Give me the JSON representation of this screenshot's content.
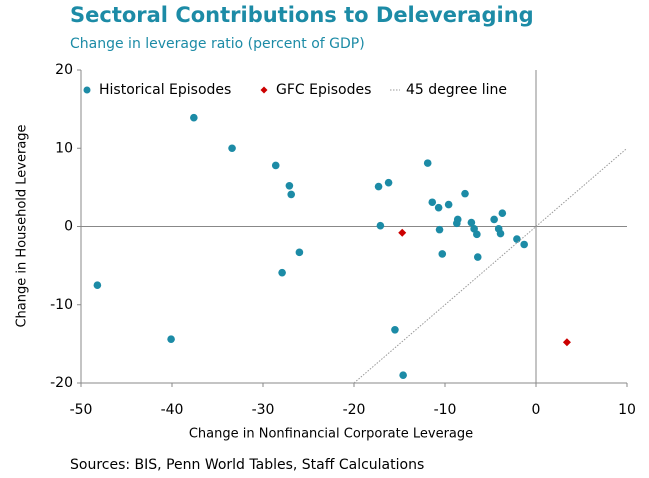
{
  "chart_data": {
    "type": "scatter",
    "title": "Sectoral Contributions to Deleveraging",
    "subtitle": "Change in leverage ratio (percent of GDP)",
    "x_label": "Change in Nonfinancial Corporate Leverage",
    "y_label": "Change in Household Leverage",
    "source": "Sources: BIS, Penn World Tables, Staff Calculations",
    "xlim": [
      -50,
      10
    ],
    "ylim": [
      -20,
      20
    ],
    "xticks": [
      -50,
      -40,
      -30,
      -20,
      -10,
      0,
      10
    ],
    "yticks": [
      -20,
      -10,
      0,
      10,
      20
    ],
    "series": [
      {
        "name": "Historical Episodes",
        "color": "#1c8ba6",
        "marker": "circle",
        "x": [
          -37.6,
          -33.4,
          -28.6,
          -27.1,
          -26.9,
          -17.3,
          -16.2,
          -17.1,
          -11.9,
          -11.4,
          -10.7,
          -9.6,
          -7.8,
          -8.6,
          -8.7,
          -7.1,
          -6.8,
          -6.5,
          -10.6,
          -4.6,
          -3.7,
          -4.1,
          -3.9,
          -2.1,
          -1.3,
          -10.3,
          -6.4,
          -26.0,
          -27.9,
          -48.2,
          -40.1,
          -15.5,
          -14.6
        ],
        "values": [
          13.9,
          10.0,
          7.8,
          5.2,
          4.1,
          5.1,
          5.6,
          0.1,
          8.1,
          3.1,
          2.4,
          2.8,
          4.2,
          0.9,
          0.4,
          0.5,
          -0.3,
          -1.0,
          -0.4,
          0.9,
          1.7,
          -0.3,
          -0.9,
          -1.6,
          -2.3,
          -3.5,
          -3.9,
          -3.3,
          -5.9,
          -7.5,
          -14.4,
          -13.2,
          -19.0
        ]
      },
      {
        "name": "GFC Episodes",
        "color": "#cc0000",
        "marker": "diamond",
        "x": [
          -14.7,
          3.4
        ],
        "values": [
          -0.8,
          -14.8
        ]
      },
      {
        "name": "45 degree line",
        "color": "#999999",
        "marker": "line",
        "x": [
          -20,
          10
        ],
        "values": [
          -20,
          10
        ]
      }
    ]
  }
}
